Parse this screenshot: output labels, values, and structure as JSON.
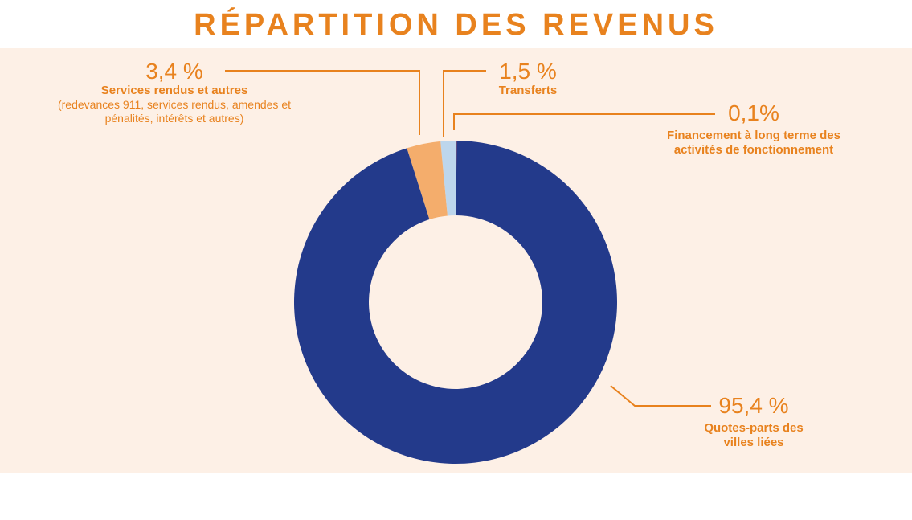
{
  "chart_data": {
    "type": "donut",
    "title": "RÉPARTITION DES REVENUS",
    "categories": [
      "Financement à long terme des activités de fonctionnement",
      "Quotes-parts des villes liées",
      "Services rendus et autres",
      "Transferts"
    ],
    "category_details": [
      null,
      null,
      "(redevances 911, services rendus, amendes et pénalités, intérêts et autres)",
      null
    ],
    "values": [
      0.1,
      95.4,
      3.4,
      1.5
    ],
    "value_labels": [
      "0,1%",
      "95,4 %",
      "3,4 %",
      "1,5 %"
    ],
    "colors": [
      "#c0282e",
      "#233a8b",
      "#f4ad6c",
      "#bdd6ec"
    ]
  }
}
